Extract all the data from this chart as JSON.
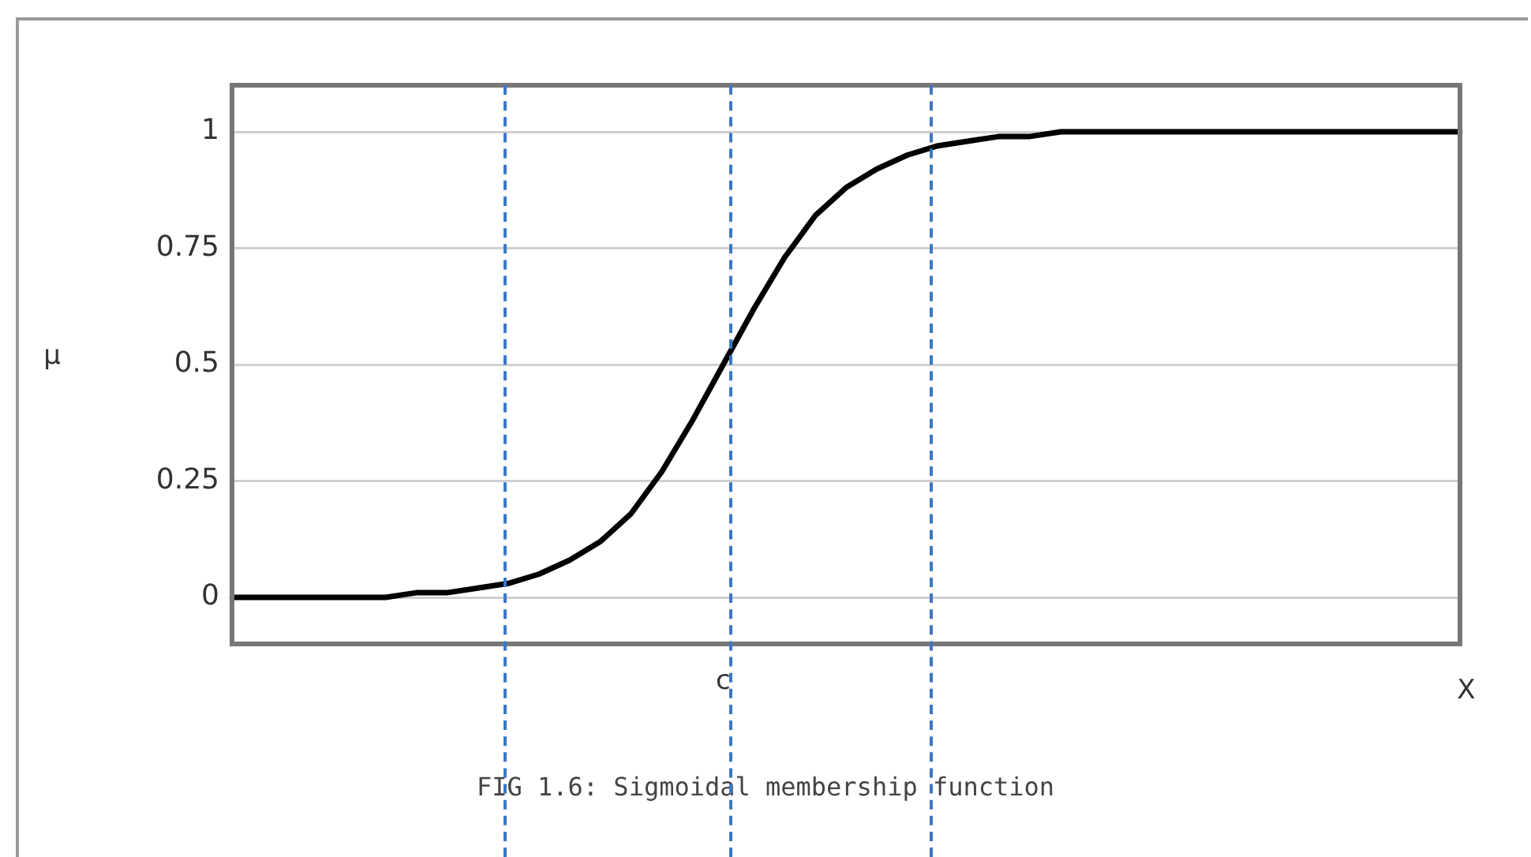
{
  "chart_data": {
    "type": "line",
    "xlabel": "X",
    "ylabel": "μ",
    "annotations": [
      "FIG 1.6: Sigmoidal membership function"
    ],
    "categories": [
      null,
      null,
      null,
      null,
      null,
      null,
      null,
      null,
      null,
      null,
      null,
      null,
      null,
      null,
      null,
      null,
      "c",
      null,
      null,
      null,
      null,
      null,
      null,
      null,
      null,
      null,
      null,
      null,
      null,
      null,
      null,
      null,
      null,
      null,
      null,
      null,
      null,
      null,
      null,
      null,
      null
    ],
    "ylim": [
      -0.1,
      1.1
    ],
    "yticks": [
      0,
      0.25,
      0.5,
      0.75,
      1
    ],
    "grid": "y",
    "marker": "none",
    "line_style": "solid",
    "series": [
      {
        "color": "#000000",
        "values": [
          0,
          0,
          0,
          0,
          0,
          0,
          0.01,
          0.01,
          0.02,
          0.03,
          0.05,
          0.08,
          0.12,
          0.18,
          0.27,
          0.38,
          0.5,
          0.62,
          0.73,
          0.82,
          0.88,
          0.92,
          0.95,
          0.97,
          0.98,
          0.99,
          0.99,
          1,
          1,
          1,
          1,
          1,
          1,
          1,
          1,
          1,
          1,
          1,
          1,
          1,
          1
        ]
      }
    ]
  }
}
